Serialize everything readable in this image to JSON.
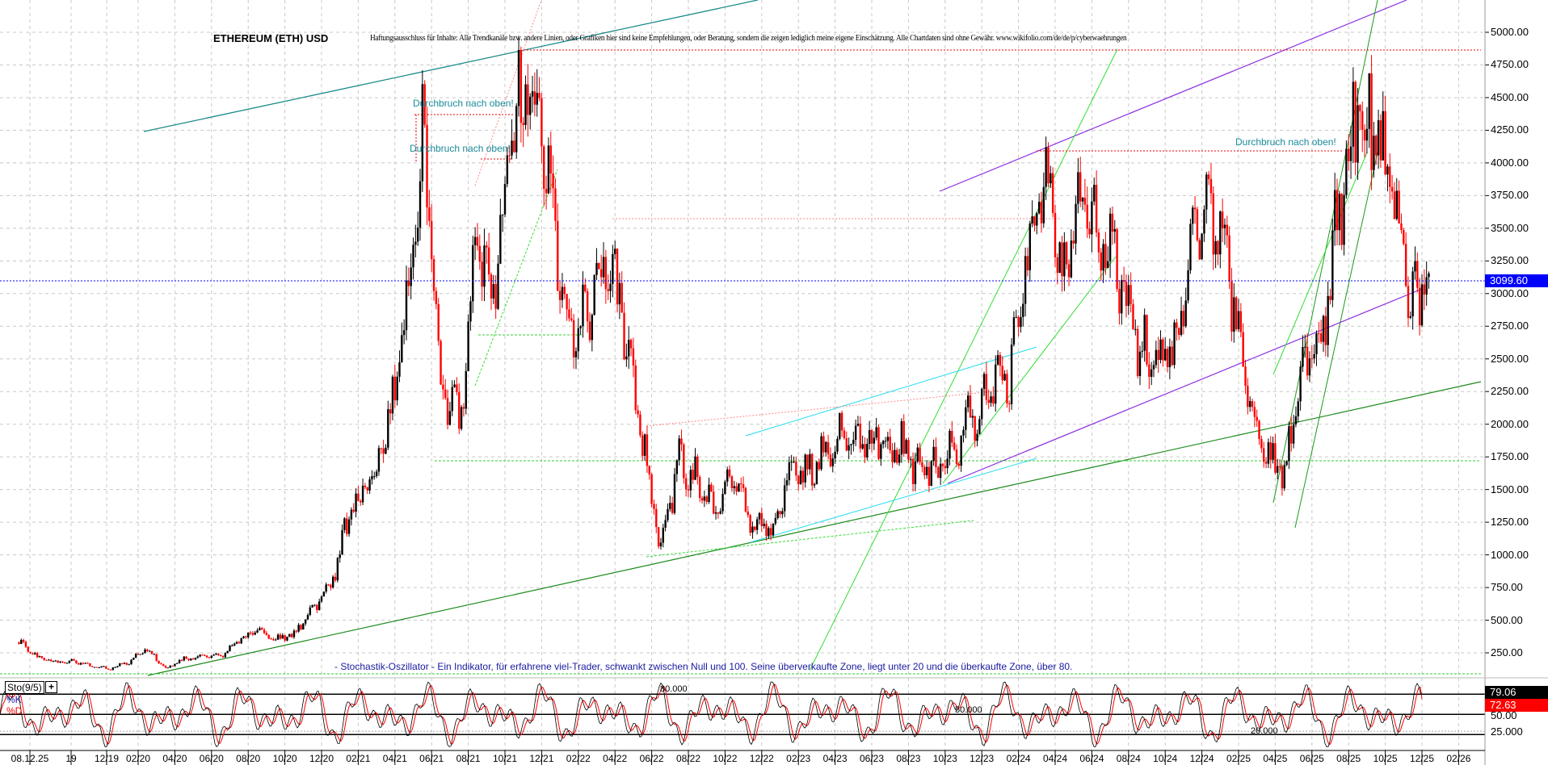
{
  "header": {
    "title": "ETHEREUM (ETH) USD",
    "disclaimer": "Haftungsausschluss für Inhalte: Alle Trendkanäle bzw. andere Linien, oder Grafiken hier sind keine Empfehlungen, oder Beratung, sondern die zeigen lediglich meine eigene Einschätzung. Alle Chartdaten sind ohne Gewähr.  www.wikifolio.com/de/de/p/cyberwaehrungen"
  },
  "annotations": [
    "Durchbruch nach oben!",
    "Durchbruch nach oben!",
    "Durchbruch nach oben!"
  ],
  "stochastic": {
    "caption": "- Stochastik-Oszillator - Ein Indikator, für erfahrene viel-Trader, schwankt zwischen Null und 100. Seine überverkaufte Zone, liegt unter 20 und die überkaufte Zone, über 80.",
    "label": "Sto(9/5)",
    "k_label": "%K",
    "d_label": "%D",
    "k_value": "79.06",
    "d_value": "72.63",
    "level_80": "80.000",
    "level_50": "50.000",
    "level_20": "20.000",
    "axis": [
      "50.00",
      "25.000"
    ],
    "k_color": "#000000",
    "d_color": "#ff0000"
  },
  "colors": {
    "up": "#000000",
    "down": "#ff0000",
    "current_price": "#0000ff",
    "grid": "#c0c0c0"
  },
  "chart_data": {
    "type": "candlestick",
    "title": "ETHEREUM (ETH) USD",
    "current_price": "3099.60",
    "ylim": [
      0,
      5200
    ],
    "y_ticks": [
      "5000.00",
      "4750.00",
      "4500.00",
      "4250.00",
      "4000.00",
      "3750.00",
      "3500.00",
      "3250.00",
      "3000.00",
      "2750.00",
      "2500.00",
      "2250.00",
      "2000.00",
      "1750.00",
      "1500.00",
      "1250.00",
      "1000.00",
      "750.00",
      "500.00",
      "250.00"
    ],
    "x_ticks": [
      "08.12.25",
      "19",
      "12/19",
      "02/20",
      "04/20",
      "06/20",
      "08/20",
      "10/20",
      "12/20",
      "02/21",
      "04/21",
      "06/21",
      "08/21",
      "10/21",
      "12/21",
      "02/22",
      "04/22",
      "06/22",
      "08/22",
      "10/22",
      "12/22",
      "02/23",
      "04/23",
      "06/23",
      "08/23",
      "10/23",
      "12/23",
      "02/24",
      "04/24",
      "06/24",
      "08/24",
      "10/24",
      "12/24",
      "02/25",
      "04/25",
      "06/25",
      "08/25",
      "10/25",
      "12/25",
      "02/26"
    ],
    "monthly_close_approx": {
      "months": [
        "07/19",
        "08/19",
        "09/19",
        "10/19",
        "11/19",
        "12/19",
        "01/20",
        "02/20",
        "03/20",
        "04/20",
        "05/20",
        "06/20",
        "07/20",
        "08/20",
        "09/20",
        "10/20",
        "11/20",
        "12/20",
        "01/21",
        "02/21",
        "03/21",
        "04/21",
        "05/21",
        "06/21",
        "07/21",
        "08/21",
        "09/21",
        "10/21",
        "11/21",
        "12/21",
        "01/22",
        "02/22",
        "03/22",
        "04/22",
        "05/22",
        "06/22",
        "07/22",
        "08/22",
        "09/22",
        "10/22",
        "11/22",
        "12/22",
        "01/23",
        "02/23",
        "03/23",
        "04/23",
        "05/23",
        "06/23",
        "07/23",
        "08/23",
        "09/23",
        "10/23",
        "11/23",
        "12/23",
        "01/24",
        "02/24",
        "03/24",
        "04/24",
        "05/24",
        "06/24",
        "07/24",
        "08/24",
        "09/24",
        "10/24",
        "11/24",
        "12/24",
        "01/25",
        "02/25",
        "03/25",
        "04/25",
        "05/25",
        "06/25",
        "07/25",
        "08/25",
        "09/25",
        "10/25",
        "11/25",
        "12/25"
      ],
      "values": [
        330,
        220,
        180,
        180,
        150,
        130,
        180,
        280,
        130,
        200,
        230,
        230,
        340,
        430,
        360,
        390,
        600,
        740,
        1300,
        1500,
        1850,
        2800,
        4150,
        2300,
        2000,
        3400,
        3000,
        4300,
        4650,
        3700,
        2600,
        2900,
        3300,
        2800,
        1900,
        1050,
        1700,
        1550,
        1330,
        1600,
        1250,
        1200,
        1600,
        1600,
        1800,
        1900,
        1850,
        1900,
        1850,
        1650,
        1650,
        1800,
        2050,
        2300,
        2300,
        3300,
        3900,
        3100,
        3800,
        3400,
        3200,
        2600,
        2500,
        2500,
        3500,
        3700,
        3200,
        2200,
        1800,
        1600,
        2500,
        2500,
        3700,
        4400,
        4200,
        3800,
        2900,
        3099.6
      ]
    }
  }
}
